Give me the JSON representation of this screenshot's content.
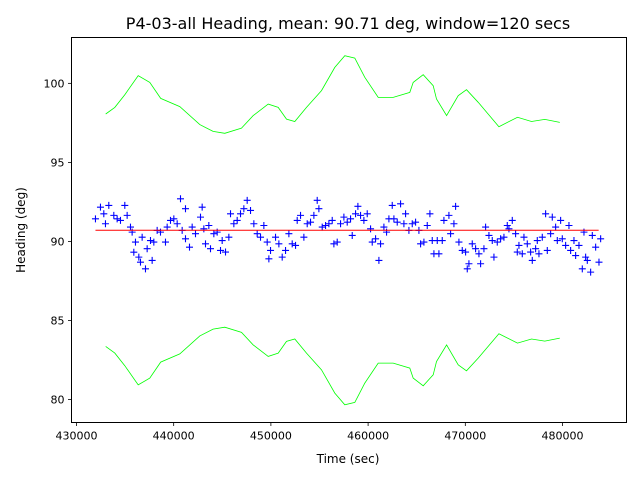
{
  "chart_data": {
    "type": "scatter",
    "title": "P4-03-all Heading, mean: 90.71 deg, window=120 secs",
    "xlabel": "Time (sec)",
    "ylabel": "Heading (deg)",
    "xlim": [
      429490,
      486580
    ],
    "ylim": [
      78.55,
      102.9
    ],
    "xticks": [
      430000,
      440000,
      450000,
      460000,
      470000,
      480000
    ],
    "yticks": [
      80,
      85,
      90,
      95,
      100
    ],
    "grid": false,
    "colors": {
      "points": "#0000ff",
      "mean": "#ff0000",
      "band": "#00ff00"
    },
    "mean": {
      "value": 90.71,
      "x_start": 431955,
      "x_end": 483715
    },
    "upper": [
      [
        433010,
        98.06
      ],
      [
        433940,
        98.48
      ],
      [
        434970,
        99.28
      ],
      [
        436350,
        100.49
      ],
      [
        437540,
        100.06
      ],
      [
        438670,
        99.05
      ],
      [
        440630,
        98.53
      ],
      [
        442690,
        97.39
      ],
      [
        444060,
        96.96
      ],
      [
        445260,
        96.84
      ],
      [
        446980,
        97.17
      ],
      [
        448180,
        97.96
      ],
      [
        449720,
        98.69
      ],
      [
        450750,
        98.48
      ],
      [
        451610,
        97.74
      ],
      [
        452460,
        97.59
      ],
      [
        453660,
        98.48
      ],
      [
        455210,
        99.54
      ],
      [
        456570,
        101.01
      ],
      [
        457600,
        101.75
      ],
      [
        458630,
        101.6
      ],
      [
        459660,
        100.38
      ],
      [
        461040,
        99.11
      ],
      [
        462580,
        99.11
      ],
      [
        464290,
        99.43
      ],
      [
        464640,
        100.06
      ],
      [
        465670,
        100.55
      ],
      [
        466700,
        99.85
      ],
      [
        467040,
        99.01
      ],
      [
        468070,
        97.96
      ],
      [
        469270,
        99.22
      ],
      [
        470120,
        99.6
      ],
      [
        471330,
        98.8
      ],
      [
        473450,
        97.26
      ],
      [
        475370,
        97.85
      ],
      [
        476810,
        97.59
      ],
      [
        478180,
        97.72
      ],
      [
        479720,
        97.53
      ]
    ],
    "lower": [
      [
        433010,
        83.36
      ],
      [
        433940,
        82.94
      ],
      [
        434970,
        82.14
      ],
      [
        436350,
        80.93
      ],
      [
        437540,
        81.36
      ],
      [
        438670,
        82.37
      ],
      [
        440630,
        82.89
      ],
      [
        442690,
        84.03
      ],
      [
        444060,
        84.46
      ],
      [
        445260,
        84.58
      ],
      [
        446980,
        84.25
      ],
      [
        448180,
        83.46
      ],
      [
        449720,
        82.73
      ],
      [
        450750,
        82.94
      ],
      [
        451610,
        83.68
      ],
      [
        452460,
        83.83
      ],
      [
        453660,
        82.94
      ],
      [
        455210,
        81.88
      ],
      [
        456570,
        80.41
      ],
      [
        457600,
        79.67
      ],
      [
        458630,
        79.82
      ],
      [
        459660,
        81.04
      ],
      [
        461040,
        82.31
      ],
      [
        462580,
        82.31
      ],
      [
        464290,
        81.99
      ],
      [
        464640,
        81.36
      ],
      [
        465670,
        80.87
      ],
      [
        466700,
        81.57
      ],
      [
        467040,
        82.41
      ],
      [
        468070,
        83.46
      ],
      [
        469270,
        82.2
      ],
      [
        470120,
        81.82
      ],
      [
        471330,
        82.62
      ],
      [
        473450,
        84.16
      ],
      [
        475370,
        83.57
      ],
      [
        476810,
        83.83
      ],
      [
        478180,
        83.7
      ],
      [
        479720,
        83.89
      ]
    ],
    "points": [
      [
        431955,
        91.43
      ],
      [
        432470,
        92.17
      ],
      [
        432813,
        91.75
      ],
      [
        433327,
        92.28
      ],
      [
        432984,
        91.12
      ],
      [
        433842,
        91.65
      ],
      [
        434185,
        91.43
      ],
      [
        434528,
        91.33
      ],
      [
        434973,
        92.28
      ],
      [
        435214,
        91.65
      ],
      [
        435557,
        90.91
      ],
      [
        435728,
        90.59
      ],
      [
        436071,
        89.96
      ],
      [
        435900,
        89.32
      ],
      [
        436414,
        89.01
      ],
      [
        436586,
        88.69
      ],
      [
        437100,
        88.27
      ],
      [
        436757,
        90.27
      ],
      [
        437272,
        89.54
      ],
      [
        437786,
        88.8
      ],
      [
        437615,
        90.06
      ],
      [
        437958,
        89.96
      ],
      [
        438301,
        90.7
      ],
      [
        438644,
        90.59
      ],
      [
        439158,
        89.96
      ],
      [
        439330,
        90.91
      ],
      [
        439673,
        91.33
      ],
      [
        440016,
        91.43
      ],
      [
        440359,
        91.12
      ],
      [
        440702,
        92.7
      ],
      [
        441216,
        92.07
      ],
      [
        440873,
        90.7
      ],
      [
        441216,
        90.17
      ],
      [
        441628,
        89.64
      ],
      [
        441902,
        90.91
      ],
      [
        442245,
        90.49
      ],
      [
        442760,
        91.54
      ],
      [
        442931,
        92.17
      ],
      [
        443103,
        90.8
      ],
      [
        443274,
        89.85
      ],
      [
        443617,
        91.01
      ],
      [
        443789,
        89.54
      ],
      [
        444132,
        90.49
      ],
      [
        444475,
        90.59
      ],
      [
        444818,
        89.43
      ],
      [
        444989,
        90.06
      ],
      [
        445332,
        89.33
      ],
      [
        445675,
        90.27
      ],
      [
        445847,
        91.75
      ],
      [
        446190,
        91.12
      ],
      [
        446533,
        91.33
      ],
      [
        446876,
        91.75
      ],
      [
        447219,
        92.07
      ],
      [
        447562,
        92.6
      ],
      [
        447905,
        91.96
      ],
      [
        448248,
        91.12
      ],
      [
        448591,
        90.49
      ],
      [
        448934,
        90.27
      ],
      [
        449277,
        91.01
      ],
      [
        449620,
        89.96
      ],
      [
        449963,
        89.43
      ],
      [
        449792,
        88.9
      ],
      [
        450478,
        90.27
      ],
      [
        450821,
        89.85
      ],
      [
        451164,
        89.01
      ],
      [
        451507,
        89.43
      ],
      [
        451850,
        90.49
      ],
      [
        452193,
        89.85
      ],
      [
        452536,
        89.75
      ],
      [
        452707,
        91.33
      ],
      [
        453050,
        91.65
      ],
      [
        453393,
        90.27
      ],
      [
        453736,
        91.12
      ],
      [
        454079,
        91.22
      ],
      [
        454422,
        91.65
      ],
      [
        454765,
        92.6
      ],
      [
        454937,
        92.07
      ],
      [
        455280,
        90.91
      ],
      [
        455623,
        91.01
      ],
      [
        455966,
        91.12
      ],
      [
        456309,
        91.33
      ],
      [
        456480,
        89.85
      ],
      [
        456823,
        89.96
      ],
      [
        457166,
        91.12
      ],
      [
        457509,
        91.54
      ],
      [
        457852,
        91.22
      ],
      [
        458195,
        91.43
      ],
      [
        458367,
        90.38
      ],
      [
        458710,
        91.75
      ],
      [
        458950,
        92.22
      ],
      [
        459224,
        91.65
      ],
      [
        459567,
        91.33
      ],
      [
        459910,
        91.75
      ],
      [
        460253,
        90.8
      ],
      [
        460425,
        89.96
      ],
      [
        460768,
        90.17
      ],
      [
        461111,
        88.8
      ],
      [
        461282,
        89.85
      ],
      [
        461625,
        90.91
      ],
      [
        461899,
        90.59
      ],
      [
        462140,
        91.43
      ],
      [
        462483,
        92.28
      ],
      [
        462654,
        91.43
      ],
      [
        462997,
        91.22
      ],
      [
        463340,
        92.38
      ],
      [
        463683,
        91.12
      ],
      [
        463855,
        91.75
      ],
      [
        464198,
        90.7
      ],
      [
        464541,
        91.12
      ],
      [
        464884,
        91.22
      ],
      [
        465227,
        90.7
      ],
      [
        465398,
        89.85
      ],
      [
        465741,
        89.96
      ],
      [
        466084,
        91.01
      ],
      [
        466358,
        91.75
      ],
      [
        466598,
        90.06
      ],
      [
        466770,
        89.22
      ],
      [
        467113,
        90.06
      ],
      [
        467284,
        89.22
      ],
      [
        467627,
        90.06
      ],
      [
        467799,
        91.33
      ],
      [
        468313,
        91.65
      ],
      [
        468485,
        90.49
      ],
      [
        468828,
        91.12
      ],
      [
        469000,
        92.22
      ],
      [
        469342,
        89.96
      ],
      [
        469685,
        89.43
      ],
      [
        470028,
        89.33
      ],
      [
        470200,
        88.27
      ],
      [
        470371,
        88.59
      ],
      [
        470714,
        89.85
      ],
      [
        471057,
        89.54
      ],
      [
        471400,
        89.22
      ],
      [
        471572,
        88.59
      ],
      [
        471915,
        89.54
      ],
      [
        472086,
        90.91
      ],
      [
        472429,
        90.38
      ],
      [
        472772,
        90.06
      ],
      [
        472944,
        89.01
      ],
      [
        473287,
        89.96
      ],
      [
        473630,
        90.17
      ],
      [
        473973,
        90.27
      ],
      [
        474316,
        91.01
      ],
      [
        474487,
        90.8
      ],
      [
        474830,
        91.33
      ],
      [
        475173,
        90.49
      ],
      [
        475345,
        89.33
      ],
      [
        475516,
        89.75
      ],
      [
        475859,
        89.22
      ],
      [
        476031,
        90.27
      ],
      [
        476374,
        89.85
      ],
      [
        476717,
        89.33
      ],
      [
        476888,
        88.8
      ],
      [
        477231,
        89.54
      ],
      [
        477403,
        90.06
      ],
      [
        477574,
        89.22
      ],
      [
        477917,
        90.27
      ],
      [
        478260,
        91.75
      ],
      [
        478432,
        89.43
      ],
      [
        478775,
        90.49
      ],
      [
        478946,
        91.54
      ],
      [
        479289,
        90.91
      ],
      [
        479461,
        90.06
      ],
      [
        479804,
        91.33
      ],
      [
        479975,
        90.17
      ],
      [
        480318,
        89.75
      ],
      [
        480661,
        91.01
      ],
      [
        480833,
        89.43
      ],
      [
        481176,
        90.06
      ],
      [
        481347,
        89.11
      ],
      [
        481690,
        89.75
      ],
      [
        482033,
        88.27
      ],
      [
        482205,
        90.59
      ],
      [
        482376,
        89.01
      ],
      [
        482548,
        88.8
      ],
      [
        482891,
        88.06
      ],
      [
        483063,
        90.38
      ],
      [
        483406,
        89.64
      ],
      [
        483749,
        88.69
      ],
      [
        483920,
        90.17
      ]
    ]
  }
}
